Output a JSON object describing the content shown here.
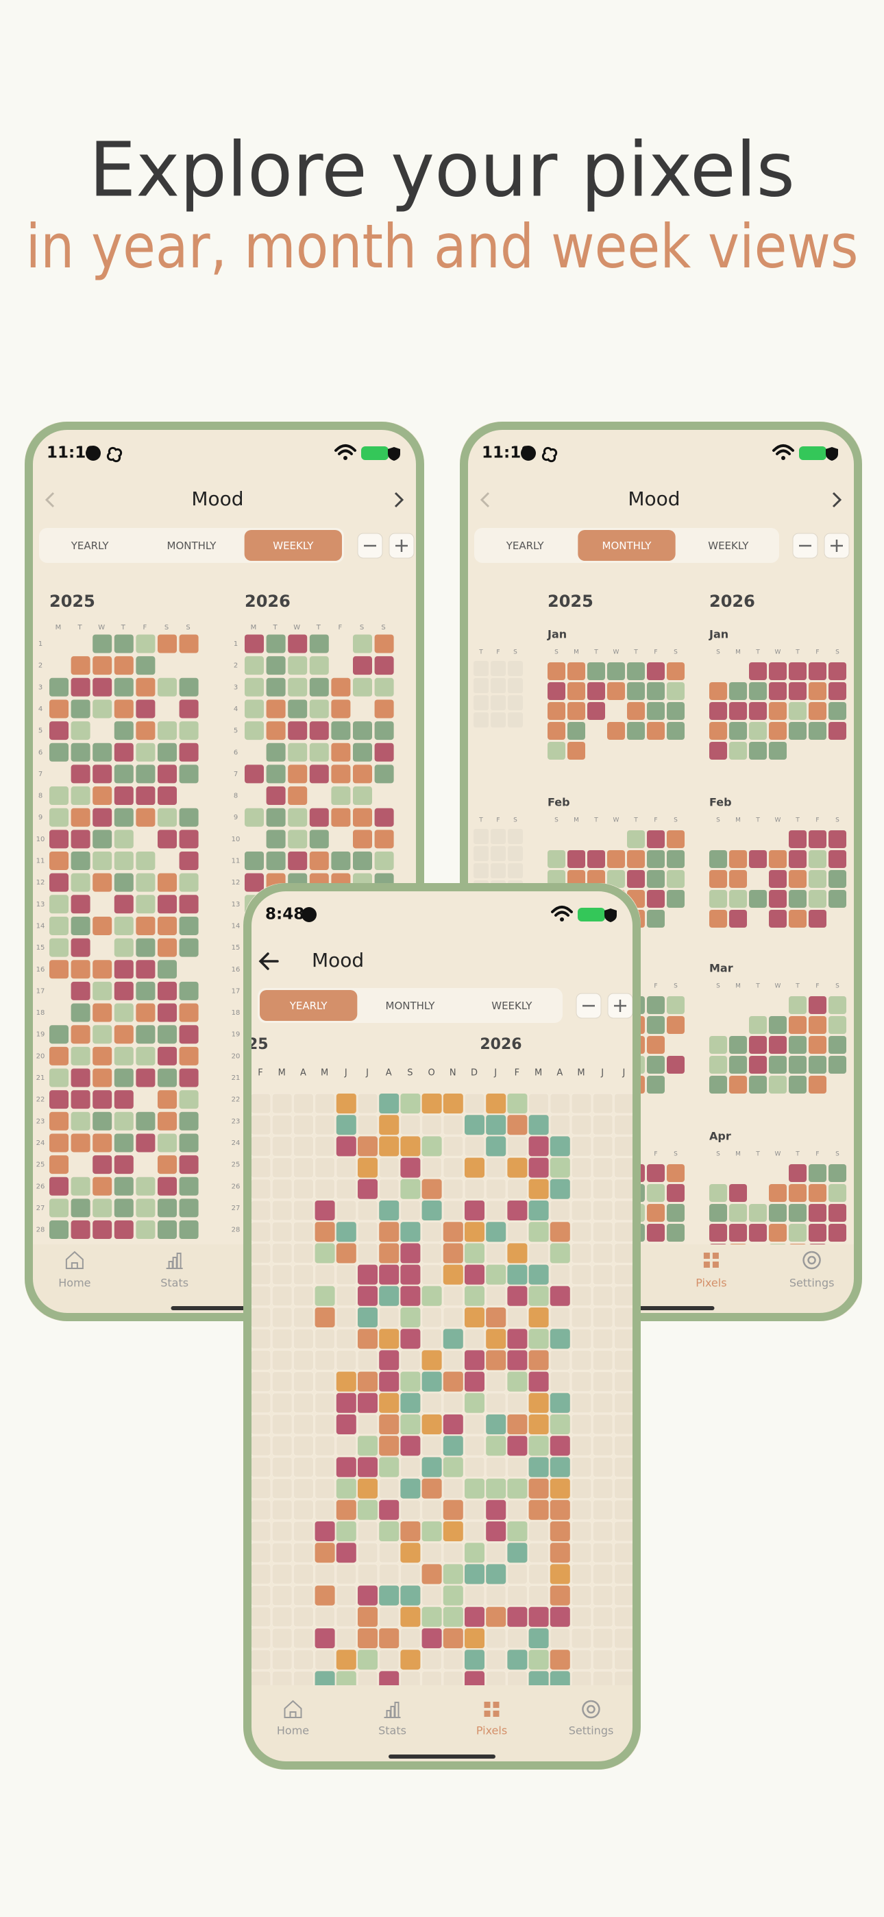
{
  "header": {
    "title": "Explore your pixels",
    "subtitle": "in year, month and week views"
  },
  "phones": [
    {
      "time": "11:19",
      "screen_title": "Mood",
      "tabs": [
        "YEARLY",
        "MONTHLY",
        "WEEKLY"
      ],
      "selected_tab": 2,
      "years": [
        "2025",
        "2026"
      ],
      "weekdays": [
        "M",
        "T",
        "W",
        "T",
        "F",
        "S",
        "S"
      ],
      "week_numbers": [
        1,
        2,
        3,
        4,
        5,
        6,
        7,
        8,
        9,
        10,
        11,
        12,
        13,
        14,
        15,
        16,
        17,
        18,
        19,
        20,
        21,
        22,
        23,
        24,
        25,
        26,
        27,
        28
      ],
      "nav": [
        "Home",
        "Stats",
        "Pixels",
        "Settings"
      ],
      "active_nav": 2
    },
    {
      "time": "11:18",
      "screen_title": "Mood",
      "tabs": [
        "YEARLY",
        "MONTHLY",
        "WEEKLY"
      ],
      "selected_tab": 1,
      "years": [
        "2025",
        "2026"
      ],
      "weekdays": [
        "S",
        "M",
        "T",
        "W",
        "T",
        "F",
        "S"
      ],
      "months": [
        "Jan",
        "Feb",
        "Mar",
        "Apr"
      ],
      "nav": [
        "Home",
        "Stats",
        "Pixels",
        "Settings"
      ],
      "active_nav": 2
    },
    {
      "time": "8:48",
      "screen_title": "Mood",
      "tabs": [
        "YEARLY",
        "MONTHLY",
        "WEEKLY"
      ],
      "selected_tab": 0,
      "years": [
        "25",
        "2026"
      ],
      "month_letters": [
        "F",
        "M",
        "A",
        "M",
        "J",
        "J",
        "A",
        "S",
        "O",
        "N",
        "D",
        "J",
        "F",
        "M",
        "A",
        "M",
        "J",
        "J",
        "A"
      ],
      "nav": [
        "Home",
        "Stats",
        "Pixels",
        "Settings"
      ],
      "active_nav": 2
    }
  ]
}
